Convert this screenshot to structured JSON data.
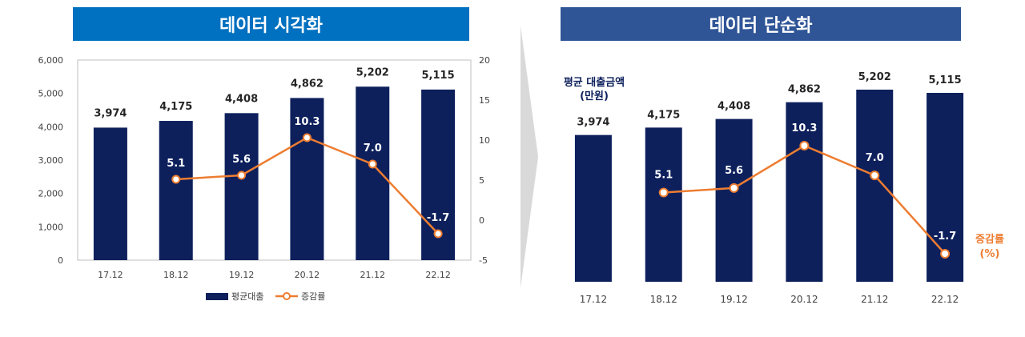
{
  "left": {
    "banner_title": "데이터 시각화",
    "legend": {
      "bar": "평균대출",
      "line": "증감률"
    }
  },
  "right": {
    "banner_title": "데이터 단순화",
    "bar_label_line1": "평균 대출금액",
    "bar_label_line2": "(만원)",
    "line_label_line1": "증감률",
    "line_label_line2": "(%)"
  },
  "colors": {
    "bar": "#0d205c",
    "line": "#ed7d31",
    "axis": "#bfbfbf",
    "text": "#262626"
  },
  "chart_data": [
    {
      "type": "bar+line",
      "title": "데이터 시각화",
      "categories": [
        "17.12",
        "18.12",
        "19.12",
        "20.12",
        "21.12",
        "22.12"
      ],
      "series": [
        {
          "name": "평균대출",
          "type": "bar",
          "axis": "left",
          "values": [
            3974,
            4175,
            4408,
            4862,
            5202,
            5115
          ],
          "labels": [
            "3,974",
            "4,175",
            "4,408",
            "4,862",
            "5,202",
            "5,115"
          ]
        },
        {
          "name": "증감률",
          "type": "line",
          "axis": "right",
          "values": [
            null,
            5.1,
            5.6,
            10.3,
            7.0,
            -1.7
          ],
          "labels": [
            "",
            "5.1",
            "5.6",
            "10.3",
            "7.0",
            "-1.7"
          ]
        }
      ],
      "y_left": {
        "range": [
          0,
          6000
        ],
        "ticks": [
          "0",
          "1,000",
          "2,000",
          "3,000",
          "4,000",
          "5,000",
          "6,000"
        ]
      },
      "y_right": {
        "range": [
          -5,
          20
        ],
        "ticks": [
          "-5",
          "0",
          "5",
          "10",
          "15",
          "20"
        ]
      },
      "legend": "bottom"
    },
    {
      "type": "bar+line",
      "title": "데이터 단순화",
      "categories": [
        "17.12",
        "18.12",
        "19.12",
        "20.12",
        "21.12",
        "22.12"
      ],
      "series": [
        {
          "name": "평균 대출금액 (만원)",
          "type": "bar",
          "values": [
            3974,
            4175,
            4408,
            4862,
            5202,
            5115
          ],
          "labels": [
            "3,974",
            "4,175",
            "4,408",
            "4,862",
            "5,202",
            "5,115"
          ]
        },
        {
          "name": "증감률 (%)",
          "type": "line",
          "values": [
            null,
            5.1,
            5.6,
            10.3,
            7.0,
            -1.7
          ],
          "labels": [
            "",
            "5.1",
            "5.6",
            "10.3",
            "7.0",
            "-1.7"
          ]
        }
      ],
      "axes_visible": false
    }
  ]
}
